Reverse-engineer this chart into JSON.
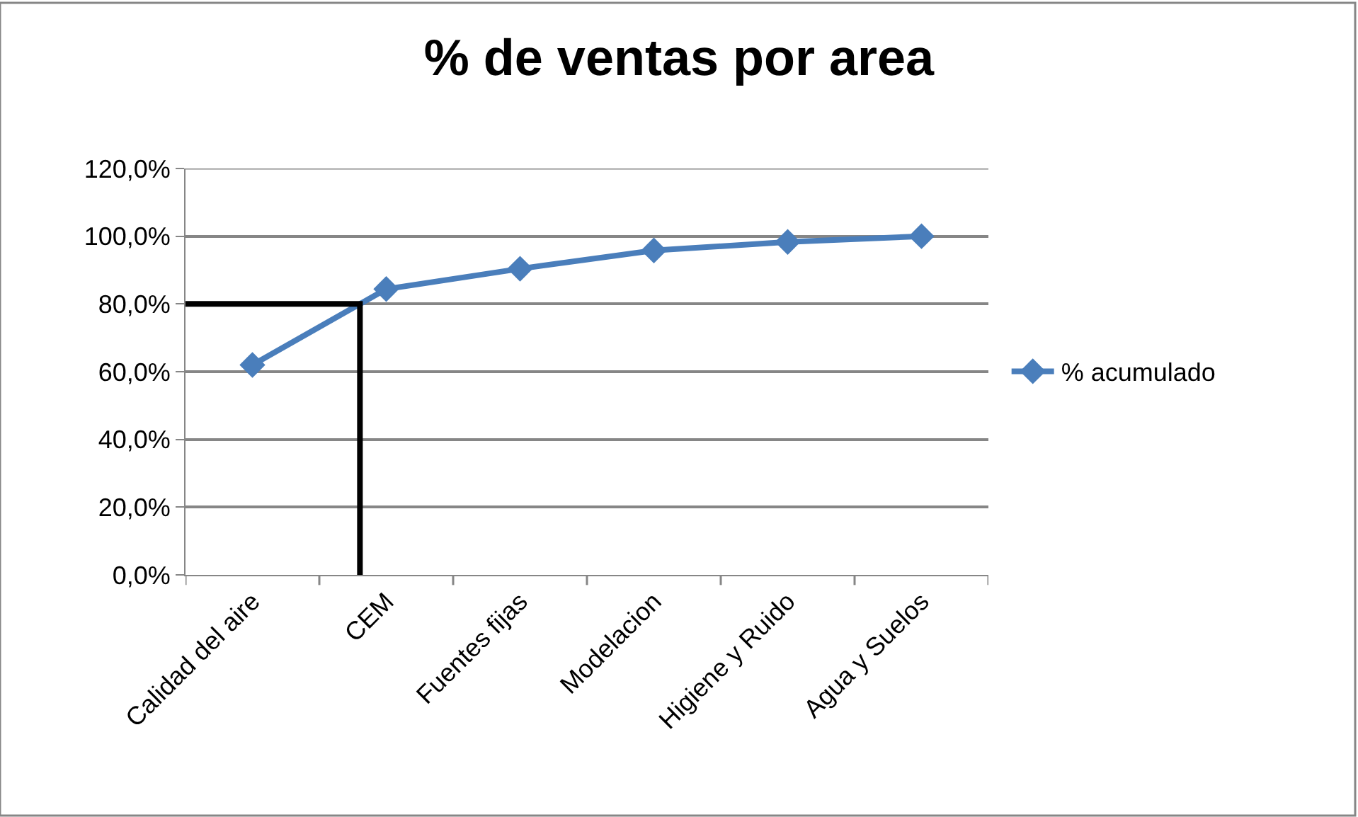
{
  "chart_data": {
    "type": "line",
    "title": "% de ventas por area",
    "categories": [
      "Calidad del aire",
      "CEM",
      "Fuentes fijas",
      "Modelacion",
      "Higiene y Ruido",
      "Agua y Suelos"
    ],
    "series": [
      {
        "name": "% acumulado",
        "color": "#4a7ebb",
        "values": [
          62,
          84.4,
          90.4,
          95.8,
          98.3,
          100
        ]
      }
    ],
    "ylim": [
      0,
      120
    ],
    "yticks": [
      {
        "value": 0,
        "label": "0,0%"
      },
      {
        "value": 20,
        "label": "20,0%"
      },
      {
        "value": 40,
        "label": "40,0%"
      },
      {
        "value": 60,
        "label": "60,0%"
      },
      {
        "value": 80,
        "label": "80,0%"
      },
      {
        "value": 100,
        "label": "100,0%"
      },
      {
        "value": 120,
        "label": "120,0%"
      }
    ],
    "ref_lines": [
      {
        "axis": "y",
        "value": 80,
        "color": "#000000"
      }
    ],
    "grid": "y",
    "legend": "right",
    "marker": "diamond",
    "line_style": "solid"
  }
}
